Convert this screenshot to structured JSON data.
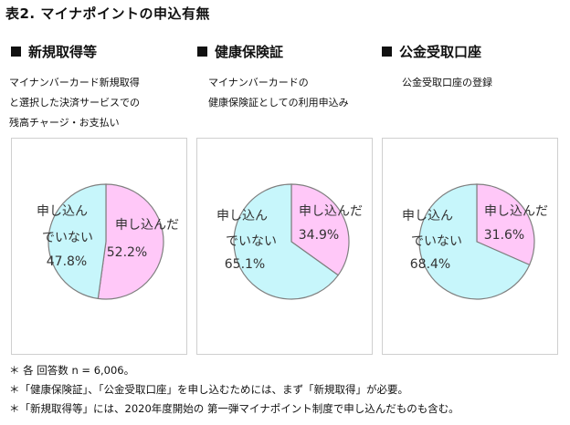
{
  "title": "表2. マイナポイントの申込有無",
  "colors": {
    "applied": "#ffc8f8",
    "not_applied": "#c7f6fb",
    "stroke": "#7f7f7f"
  },
  "chart_data": [
    {
      "type": "pie",
      "title": "新規取得等",
      "description": [
        "マイナンバーカード新規取得",
        "と選択した決済サービスでの",
        "残高チャージ・お支払い"
      ],
      "slices": [
        {
          "name_lines": [
            "申し込んだ"
          ],
          "value": 52.2,
          "label": "52.2%"
        },
        {
          "name_lines": [
            "申し込ん",
            "でいない"
          ],
          "value": 47.8,
          "label": "47.8%"
        }
      ]
    },
    {
      "type": "pie",
      "title": "健康保険証",
      "description": [
        "マイナンバーカードの",
        "健康保険証としての利用申込み"
      ],
      "slices": [
        {
          "name_lines": [
            "申し込んだ"
          ],
          "value": 34.9,
          "label": "34.9%"
        },
        {
          "name_lines": [
            "申し込ん",
            "でいない"
          ],
          "value": 65.1,
          "label": "65.1%"
        }
      ]
    },
    {
      "type": "pie",
      "title": "公金受取口座",
      "description": [
        "公金受取口座の登録"
      ],
      "slices": [
        {
          "name_lines": [
            "申し込んだ"
          ],
          "value": 31.6,
          "label": "31.6%"
        },
        {
          "name_lines": [
            "申し込ん",
            "でいない"
          ],
          "value": 68.4,
          "label": "68.4%"
        }
      ]
    }
  ],
  "notes": [
    "＊ 各 回答数 n = 6,006。",
    "＊「健康保険証」、「公金受取口座」を申し込むためには、まず「新規取得」が必要。",
    "＊「新規取得等」には、2020年度開始の 第一弾マイナポイント制度で申し込んだものも含む。"
  ]
}
